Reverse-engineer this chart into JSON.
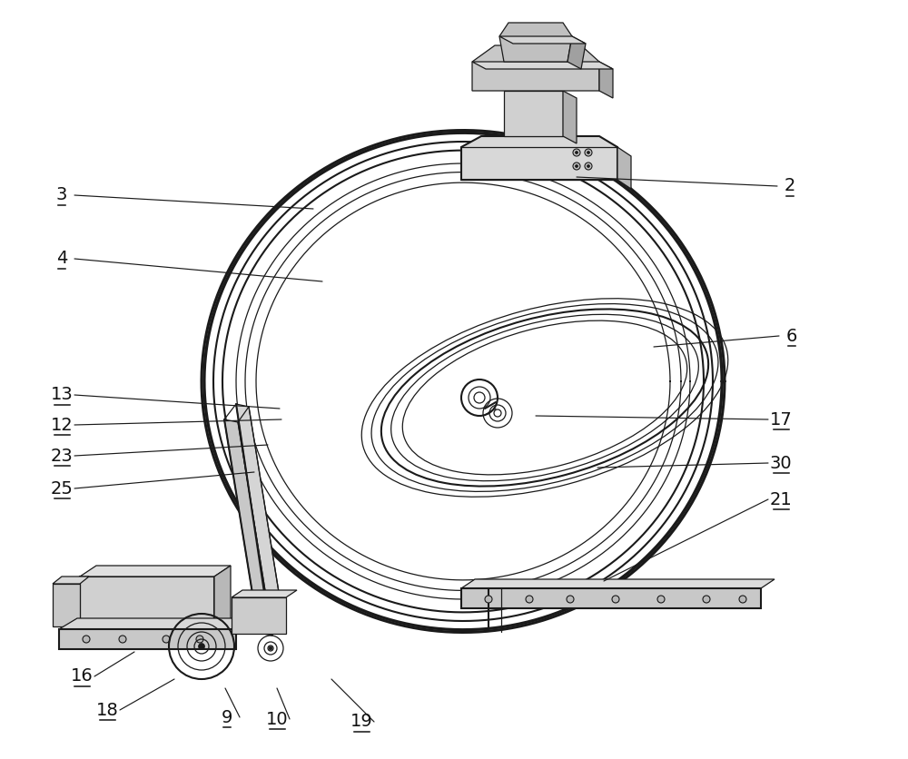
{
  "bg_color": "#ffffff",
  "line_color": "#1a1a1a",
  "label_color": "#111111",
  "fig_width": 10.0,
  "fig_height": 8.36,
  "annotations": {
    "2": {
      "lpos": [
        870,
        205
      ],
      "tpos": [
        635,
        195
      ]
    },
    "3": {
      "lpos": [
        68,
        215
      ],
      "tpos": [
        345,
        230
      ]
    },
    "4": {
      "lpos": [
        68,
        285
      ],
      "tpos": [
        355,
        310
      ]
    },
    "6": {
      "lpos": [
        872,
        370
      ],
      "tpos": [
        720,
        382
      ]
    },
    "12": {
      "lpos": [
        68,
        468
      ],
      "tpos": [
        310,
        462
      ]
    },
    "13": {
      "lpos": [
        68,
        435
      ],
      "tpos": [
        308,
        450
      ]
    },
    "17": {
      "lpos": [
        860,
        462
      ],
      "tpos": [
        590,
        458
      ]
    },
    "21": {
      "lpos": [
        860,
        550
      ],
      "tpos": [
        665,
        640
      ]
    },
    "23": {
      "lpos": [
        68,
        502
      ],
      "tpos": [
        295,
        490
      ]
    },
    "25": {
      "lpos": [
        68,
        538
      ],
      "tpos": [
        280,
        520
      ]
    },
    "30": {
      "lpos": [
        860,
        510
      ],
      "tpos": [
        658,
        515
      ]
    },
    "9": {
      "lpos": [
        250,
        790
      ],
      "tpos": [
        248,
        758
      ]
    },
    "10": {
      "lpos": [
        305,
        792
      ],
      "tpos": [
        305,
        758
      ]
    },
    "16": {
      "lpos": [
        90,
        745
      ],
      "tpos": [
        148,
        718
      ]
    },
    "18": {
      "lpos": [
        118,
        782
      ],
      "tpos": [
        192,
        748
      ]
    },
    "19": {
      "lpos": [
        398,
        795
      ],
      "tpos": [
        365,
        748
      ]
    }
  }
}
